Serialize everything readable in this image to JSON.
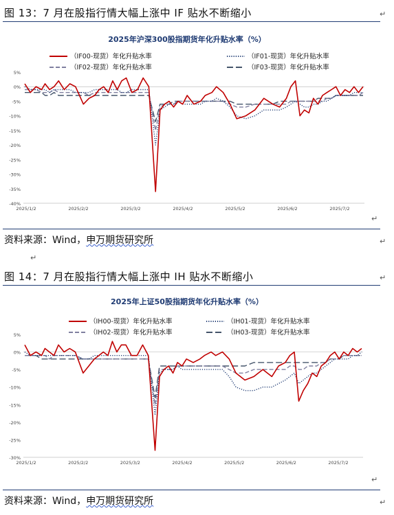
{
  "figure1": {
    "caption": "图 13：7 月在股指行情大幅上涨中 IF 贴水不断缩小",
    "source_prefix": "资料来源：Wind，",
    "source_name": "申万期货研究所",
    "chart_data": {
      "type": "line",
      "title": "2025年沪深300股指期货年化升贴水率（%）",
      "x_ticks": [
        "2025/1/2",
        "2025/2/2",
        "2025/3/2",
        "2025/4/2",
        "2025/5/2",
        "2025/6/2",
        "2025/7/2"
      ],
      "y_ticks": [
        "5%",
        "0%",
        "-5%",
        "-10%",
        "-15%",
        "-20%",
        "-25%",
        "-30%",
        "-35%",
        "-40%"
      ],
      "ylim": [
        -40,
        5
      ],
      "legend": [
        {
          "name": "（IF00-现货）年化升贴水率",
          "color": "#c00000",
          "dash": "solid"
        },
        {
          "name": "（IF01-现货）年化升贴水率",
          "color": "#1f3b73",
          "dash": "dot"
        },
        {
          "name": "（IF02-现货）年化升贴水率",
          "color": "#7f7f9f",
          "dash": "dash"
        },
        {
          "name": "（IF03-现货）年化升贴水率",
          "color": "#44546a",
          "dash": "longdash"
        }
      ],
      "x": [
        0,
        5,
        10,
        15,
        18,
        22,
        26,
        30,
        35,
        40,
        45,
        52,
        57,
        62,
        66,
        70,
        74,
        78,
        82,
        86,
        90,
        95,
        100,
        105,
        110,
        116,
        120,
        124,
        128,
        132,
        136,
        140,
        144,
        150,
        156,
        160,
        166,
        170,
        176,
        182,
        188,
        196,
        204,
        212,
        220,
        226,
        232,
        236,
        240,
        244,
        248,
        252,
        256,
        260,
        264,
        268,
        272,
        276,
        280,
        284,
        288,
        292,
        296,
        300
      ],
      "series": [
        {
          "name": "IF00",
          "values": [
            1,
            -2,
            0,
            -1,
            1,
            -1,
            0,
            2,
            -1,
            1,
            0,
            -6,
            -4,
            -3,
            -1,
            0,
            -2,
            2,
            -1,
            2,
            3,
            -2,
            -1,
            3,
            0,
            -36,
            -8,
            -6,
            -5,
            -7,
            -5,
            -6,
            -3,
            -6,
            -5,
            -3,
            -2,
            0,
            -2,
            -6,
            -11,
            -10,
            -8,
            -4,
            -6,
            -7,
            -4,
            0,
            2,
            -10,
            -8,
            -9,
            -4,
            -6,
            -3,
            -2,
            -1,
            0,
            -3,
            -1,
            -2,
            0,
            -2,
            0
          ]
        },
        {
          "name": "IF01",
          "values": [
            0,
            -1,
            -1,
            -1,
            -1,
            -2,
            -1,
            -1,
            -1,
            -1,
            -2,
            -2,
            -2,
            -1,
            -1,
            -1,
            -1,
            -1,
            -1,
            -2,
            -2,
            -1,
            -1,
            -1,
            -1,
            -20,
            -8,
            -7,
            -6,
            -6,
            -5,
            -6,
            -6,
            -6,
            -6,
            -5,
            -5,
            -4,
            -5,
            -7,
            -10,
            -11,
            -10,
            -8,
            -8,
            -8,
            -7,
            -6,
            -5,
            -6,
            -7,
            -7,
            -6,
            -6,
            -5,
            -5,
            -4,
            -3,
            -3,
            -3,
            -3,
            -2,
            -2,
            -2
          ]
        },
        {
          "name": "IF02",
          "values": [
            -1,
            -1,
            -1,
            -2,
            -2,
            -2,
            -1,
            -2,
            -2,
            -2,
            -2,
            -2,
            -3,
            -2,
            -2,
            -2,
            -2,
            -2,
            -2,
            -2,
            -2,
            -2,
            -2,
            -2,
            -2,
            -15,
            -7,
            -6,
            -6,
            -6,
            -5,
            -5,
            -5,
            -5,
            -5,
            -5,
            -5,
            -5,
            -5,
            -6,
            -7,
            -7,
            -6,
            -6,
            -6,
            -6,
            -6,
            -5,
            -5,
            -5,
            -5,
            -5,
            -5,
            -5,
            -5,
            -4,
            -4,
            -3,
            -3,
            -3,
            -3,
            -3,
            -3,
            -2
          ]
        },
        {
          "name": "IF03",
          "values": [
            -2,
            -2,
            -2,
            -2,
            -3,
            -3,
            -2,
            -3,
            -3,
            -3,
            -3,
            -3,
            -3,
            -3,
            -3,
            -3,
            -3,
            -3,
            -3,
            -3,
            -3,
            -3,
            -3,
            -3,
            -3,
            -12,
            -6,
            -6,
            -6,
            -5,
            -5,
            -5,
            -5,
            -5,
            -5,
            -5,
            -5,
            -5,
            -5,
            -5,
            -6,
            -6,
            -6,
            -6,
            -6,
            -5,
            -5,
            -5,
            -5,
            -5,
            -5,
            -5,
            -5,
            -4,
            -4,
            -4,
            -4,
            -3,
            -3,
            -3,
            -3,
            -3,
            -3,
            -3
          ]
        }
      ]
    }
  },
  "figure2": {
    "caption": "图 14：7 月在股指行情大幅上涨中 IH 贴水不断缩小",
    "source_prefix": "资料来源：Wind，",
    "source_name": "申万期货研究所",
    "chart_data": {
      "type": "line",
      "title": "2025年上证50股指期货年化升贴水率（%）",
      "x_ticks": [
        "2025/1/2",
        "2025/2/2",
        "2025/3/2",
        "2025/4/2",
        "2025/5/2",
        "2025/6/2",
        "2025/7/2"
      ],
      "y_ticks": [
        "5%",
        "0%",
        "-5%",
        "-10%",
        "-15%",
        "-20%",
        "-25%",
        "-30%"
      ],
      "ylim": [
        -30,
        5
      ],
      "legend": [
        {
          "name": "（IH00-现货）年化升贴水率",
          "color": "#c00000",
          "dash": "solid"
        },
        {
          "name": "（IH01-现货）年化升贴水率",
          "color": "#1f3b73",
          "dash": "dot"
        },
        {
          "name": "（IH02-现货）年化升贴水率",
          "color": "#7f7f9f",
          "dash": "dash"
        },
        {
          "name": "（IH03-现货）年化升贴水率",
          "color": "#44546a",
          "dash": "longdash"
        }
      ],
      "x": [
        0,
        5,
        10,
        15,
        18,
        22,
        26,
        30,
        35,
        40,
        45,
        52,
        57,
        62,
        66,
        70,
        74,
        78,
        82,
        86,
        90,
        95,
        100,
        105,
        110,
        116,
        120,
        124,
        128,
        132,
        136,
        140,
        144,
        150,
        156,
        160,
        166,
        170,
        176,
        182,
        188,
        196,
        204,
        212,
        220,
        226,
        232,
        236,
        240,
        244,
        248,
        252,
        256,
        260,
        264,
        268,
        272,
        276,
        280,
        284,
        288,
        292,
        296,
        300
      ],
      "series": [
        {
          "name": "IH00",
          "values": [
            2,
            -1,
            0,
            -1,
            1,
            0,
            -1,
            2,
            0,
            1,
            0,
            -6,
            -4,
            -2,
            -1,
            0,
            -1,
            3,
            0,
            2,
            2,
            -1,
            -1,
            2,
            -1,
            -28,
            -7,
            -5,
            -4,
            -6,
            -3,
            -4,
            -2,
            -3,
            -2,
            -1,
            0,
            -1,
            0,
            -2,
            -6,
            -8,
            -7,
            -5,
            -7,
            -4,
            -3,
            -1,
            0,
            -14,
            -11,
            -9,
            -6,
            -7,
            -4,
            -3,
            -1,
            0,
            -2,
            0,
            -1,
            1,
            0,
            1
          ]
        },
        {
          "name": "IH01",
          "values": [
            0,
            -1,
            -1,
            -1,
            -1,
            -1,
            -1,
            -1,
            -1,
            -1,
            -1,
            -2,
            -2,
            -1,
            -1,
            -1,
            -1,
            -1,
            -1,
            -1,
            -1,
            -1,
            -1,
            -1,
            -1,
            -18,
            -6,
            -5,
            -5,
            -5,
            -4,
            -5,
            -5,
            -5,
            -5,
            -5,
            -5,
            -5,
            -5,
            -7,
            -10,
            -11,
            -11,
            -10,
            -10,
            -9,
            -8,
            -7,
            -6,
            -9,
            -8,
            -7,
            -6,
            -6,
            -5,
            -4,
            -3,
            -2,
            -2,
            -2,
            -2,
            -1,
            -1,
            0
          ]
        },
        {
          "name": "IH02",
          "values": [
            -1,
            -1,
            -1,
            -1,
            -1,
            -2,
            -1,
            -1,
            -1,
            -1,
            -1,
            -2,
            -2,
            -2,
            -2,
            -2,
            -2,
            -2,
            -2,
            -2,
            -2,
            -2,
            -2,
            -2,
            -2,
            -15,
            -5,
            -5,
            -5,
            -5,
            -4,
            -4,
            -4,
            -4,
            -4,
            -4,
            -4,
            -4,
            -4,
            -5,
            -6,
            -6,
            -5,
            -5,
            -5,
            -5,
            -5,
            -4,
            -4,
            -5,
            -5,
            -4,
            -4,
            -4,
            -3,
            -3,
            -2,
            -2,
            -2,
            -1,
            -1,
            -1,
            -1,
            -1
          ]
        },
        {
          "name": "IH03",
          "values": [
            -1,
            -1,
            -1,
            -2,
            -2,
            -2,
            -2,
            -2,
            -2,
            -2,
            -2,
            -2,
            -2,
            -2,
            -2,
            -2,
            -2,
            -2,
            -2,
            -2,
            -2,
            -2,
            -2,
            -2,
            -2,
            -13,
            -4,
            -4,
            -4,
            -4,
            -4,
            -4,
            -4,
            -4,
            -4,
            -4,
            -4,
            -4,
            -4,
            -4,
            -4,
            -4,
            -3,
            -3,
            -3,
            -3,
            -3,
            -3,
            -3,
            -3,
            -3,
            -3,
            -3,
            -3,
            -3,
            -3,
            -2,
            -2,
            -2,
            -1,
            -1,
            -1,
            -1,
            -1
          ]
        }
      ]
    }
  }
}
